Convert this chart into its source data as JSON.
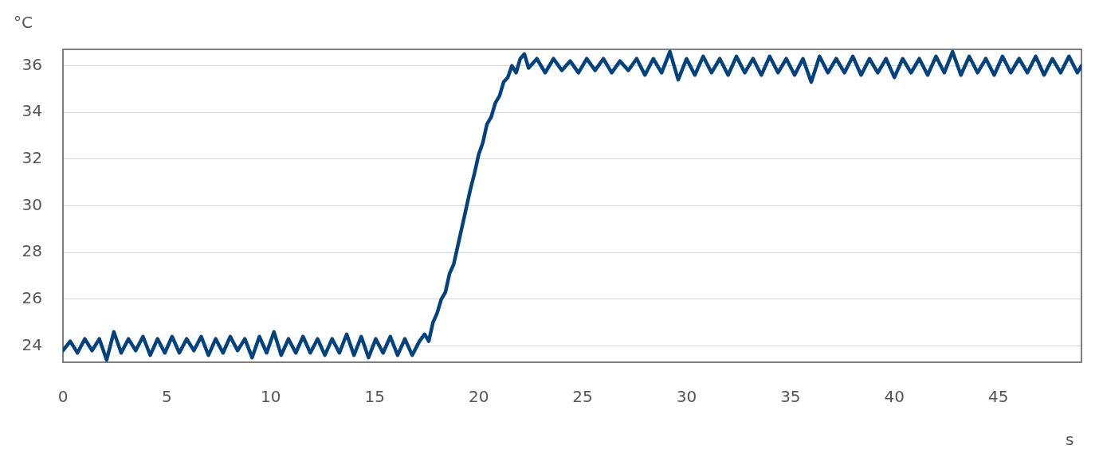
{
  "chart_data": {
    "type": "line",
    "xlabel": "s",
    "ylabel": "°C",
    "x": [
      0,
      0.35,
      0.7,
      1.05,
      1.4,
      1.75,
      2.1,
      2.45,
      2.8,
      3.15,
      3.5,
      3.85,
      4.2,
      4.55,
      4.9,
      5.25,
      5.6,
      5.95,
      6.3,
      6.65,
      7,
      7.35,
      7.7,
      8.05,
      8.4,
      8.75,
      9.1,
      9.45,
      9.8,
      10.15,
      10.5,
      10.85,
      11.2,
      11.55,
      11.9,
      12.25,
      12.6,
      12.95,
      13.3,
      13.65,
      14,
      14.35,
      14.7,
      15.05,
      15.4,
      15.75,
      16.1,
      16.45,
      16.8,
      17.15,
      17.4,
      17.6,
      17.8,
      18,
      18.2,
      18.4,
      18.6,
      18.8,
      19,
      19.2,
      19.4,
      19.6,
      19.8,
      20,
      20.2,
      20.4,
      20.6,
      20.8,
      21,
      21.2,
      21.4,
      21.6,
      21.8,
      22,
      22.2,
      22.4,
      22.8,
      23.2,
      23.6,
      24,
      24.4,
      24.8,
      25.2,
      25.6,
      26,
      26.4,
      26.8,
      27.2,
      27.6,
      28,
      28.4,
      28.8,
      29.2,
      29.6,
      30,
      30.4,
      30.8,
      31.2,
      31.6,
      32,
      32.4,
      32.8,
      33.2,
      33.6,
      34,
      34.4,
      34.8,
      35.2,
      35.6,
      36,
      36.4,
      36.8,
      37.2,
      37.6,
      38,
      38.4,
      38.8,
      39.2,
      39.6,
      40,
      40.4,
      40.8,
      41.2,
      41.6,
      42,
      42.4,
      42.8,
      43.2,
      43.6,
      44,
      44.4,
      44.8,
      45.2,
      45.6,
      46,
      46.4,
      46.8,
      47.2,
      47.6,
      48,
      48.4,
      48.8,
      49
    ],
    "series": [
      {
        "color": "#02437f",
        "values": [
          23.8,
          24.2,
          23.7,
          24.3,
          23.8,
          24.3,
          23.4,
          24.6,
          23.7,
          24.3,
          23.8,
          24.4,
          23.6,
          24.3,
          23.7,
          24.4,
          23.7,
          24.3,
          23.8,
          24.4,
          23.6,
          24.3,
          23.7,
          24.4,
          23.8,
          24.3,
          23.5,
          24.4,
          23.7,
          24.6,
          23.6,
          24.3,
          23.7,
          24.4,
          23.7,
          24.3,
          23.6,
          24.3,
          23.7,
          24.5,
          23.6,
          24.4,
          23.5,
          24.3,
          23.7,
          24.4,
          23.6,
          24.3,
          23.6,
          24.2,
          24.5,
          24.2,
          25.0,
          25.4,
          26.0,
          26.3,
          27.1,
          27.5,
          28.3,
          29.1,
          29.9,
          30.7,
          31.4,
          32.2,
          32.7,
          33.5,
          33.8,
          34.4,
          34.7,
          35.3,
          35.5,
          36.0,
          35.7,
          36.3,
          36.5,
          35.9,
          36.3,
          35.7,
          36.3,
          35.8,
          36.2,
          35.7,
          36.3,
          35.8,
          36.3,
          35.7,
          36.2,
          35.8,
          36.3,
          35.6,
          36.3,
          35.7,
          36.6,
          35.4,
          36.3,
          35.6,
          36.4,
          35.7,
          36.3,
          35.6,
          36.4,
          35.7,
          36.3,
          35.6,
          36.4,
          35.7,
          36.3,
          35.6,
          36.3,
          35.3,
          36.4,
          35.7,
          36.3,
          35.7,
          36.4,
          35.6,
          36.3,
          35.7,
          36.3,
          35.5,
          36.3,
          35.7,
          36.3,
          35.6,
          36.4,
          35.7,
          36.6,
          35.6,
          36.4,
          35.7,
          36.3,
          35.6,
          36.4,
          35.7,
          36.3,
          35.7,
          36.4,
          35.6,
          36.3,
          35.7,
          36.4,
          35.7,
          36.0
        ]
      }
    ],
    "xlim": [
      0,
      49
    ],
    "ylim": [
      23.3,
      36.7
    ],
    "xticks": [
      0,
      5,
      10,
      15,
      20,
      25,
      30,
      35,
      40,
      45
    ],
    "yticks": [
      24,
      26,
      28,
      30,
      32,
      34,
      36
    ],
    "grid": "y",
    "marker": "none",
    "line_style": "solid"
  }
}
